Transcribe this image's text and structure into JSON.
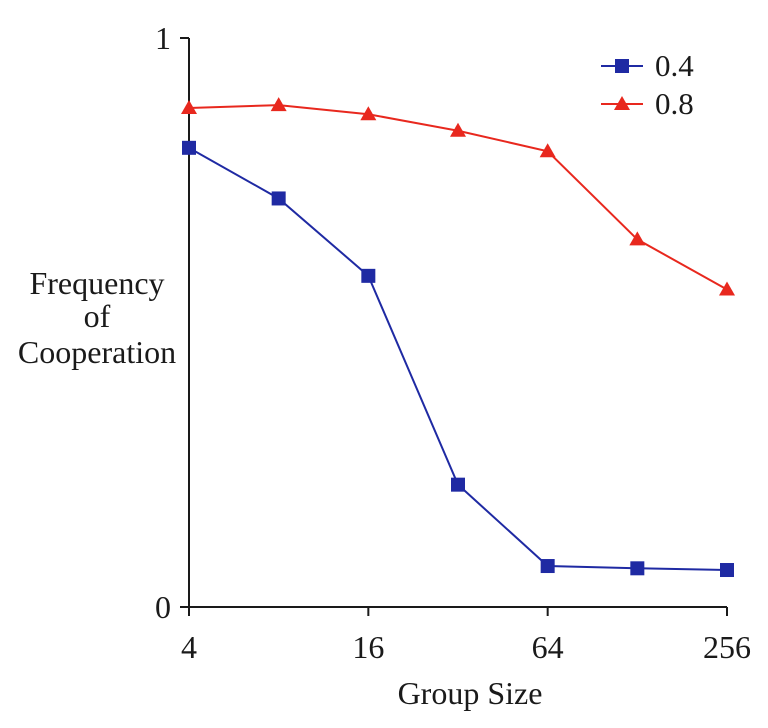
{
  "chart_data": {
    "type": "line",
    "x_scale": "log2",
    "x": [
      4,
      8,
      16,
      32,
      64,
      128,
      256
    ],
    "xticks": [
      "4",
      "16",
      "64",
      "256"
    ],
    "xtick_values": [
      4,
      16,
      64,
      256
    ],
    "ylim": [
      0,
      1
    ],
    "yticks": [
      "0",
      "1"
    ],
    "ytick_values": [
      0,
      1
    ],
    "xlabel": "Group Size",
    "ylabel_lines": [
      "Frequency",
      "of",
      "Cooperation"
    ],
    "legend_position": "top-right",
    "series": [
      {
        "name": "0.4",
        "color": "#1f2aa3",
        "marker": "square",
        "values": [
          0.807,
          0.718,
          0.582,
          0.215,
          0.072,
          0.068,
          0.065
        ]
      },
      {
        "name": "0.8",
        "color": "#e8281e",
        "marker": "triangle",
        "values": [
          0.877,
          0.882,
          0.866,
          0.837,
          0.801,
          0.646,
          0.558
        ]
      }
    ]
  }
}
